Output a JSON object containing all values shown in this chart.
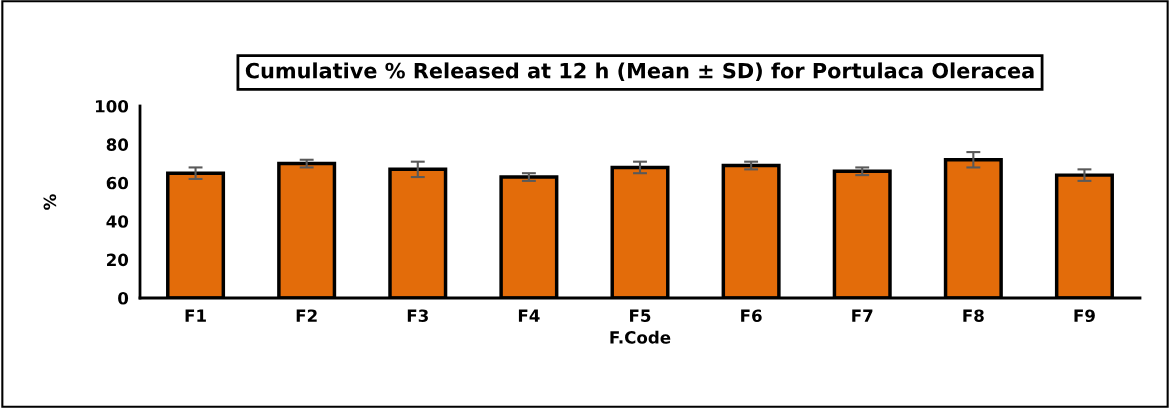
{
  "chart_data": {
    "type": "bar",
    "title": "Cumulative % Released at 12 h (Mean ± SD) for Portulaca Oleracea",
    "xlabel": "F.Code",
    "ylabel": "%",
    "categories": [
      "F1",
      "F2",
      "F3",
      "F4",
      "F5",
      "F6",
      "F7",
      "F8",
      "F9"
    ],
    "series": [
      {
        "color": "#e36c0a",
        "values": [
          65,
          70,
          67,
          63,
          68,
          69,
          66,
          72,
          64
        ],
        "errors": [
          3,
          2,
          4,
          2,
          3,
          2,
          2,
          4,
          3
        ]
      }
    ],
    "ylim": [
      0,
      100
    ],
    "yticks": [
      0,
      20,
      40,
      60,
      80,
      100
    ],
    "grid": false,
    "legend": false
  }
}
